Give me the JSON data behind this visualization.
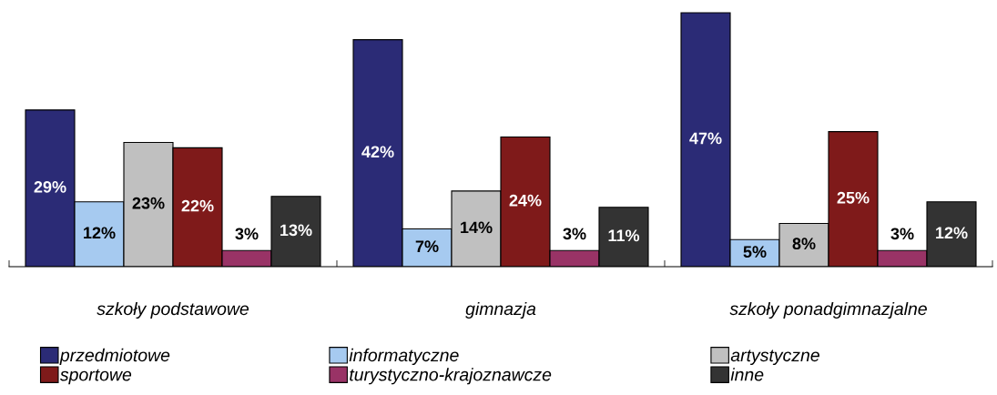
{
  "chart_data": {
    "type": "bar",
    "categories": [
      "szkoły podstawowe",
      "gimnazja",
      "szkoły ponadgimnazjalne"
    ],
    "series": [
      {
        "name": "przedmiotowe",
        "color": "#2b2b76",
        "values": [
          29,
          42,
          47
        ],
        "value_labels": [
          "29%",
          "42%",
          "47%"
        ]
      },
      {
        "name": "informatyczne",
        "color": "#a6caf0",
        "values": [
          12,
          7,
          5
        ],
        "value_labels": [
          "12%",
          "7%",
          "5%"
        ]
      },
      {
        "name": "artystyczne",
        "color": "#c0c0c0",
        "values": [
          23,
          14,
          8
        ],
        "value_labels": [
          "23%",
          "14%",
          "8%"
        ]
      },
      {
        "name": "sportowe",
        "color": "#7f1a1a",
        "values": [
          22,
          24,
          25
        ],
        "value_labels": [
          "22%",
          "24%",
          "25%"
        ]
      },
      {
        "name": "turystyczno-krajoznawcze",
        "color": "#993366",
        "values": [
          3,
          3,
          3
        ],
        "value_labels": [
          "3%",
          "3%",
          "3%"
        ]
      },
      {
        "name": "inne",
        "color": "#333333",
        "values": [
          13,
          11,
          12
        ],
        "value_labels": [
          "13%",
          "11%",
          "12%"
        ]
      }
    ],
    "legend": "bottom",
    "grid": false
  }
}
